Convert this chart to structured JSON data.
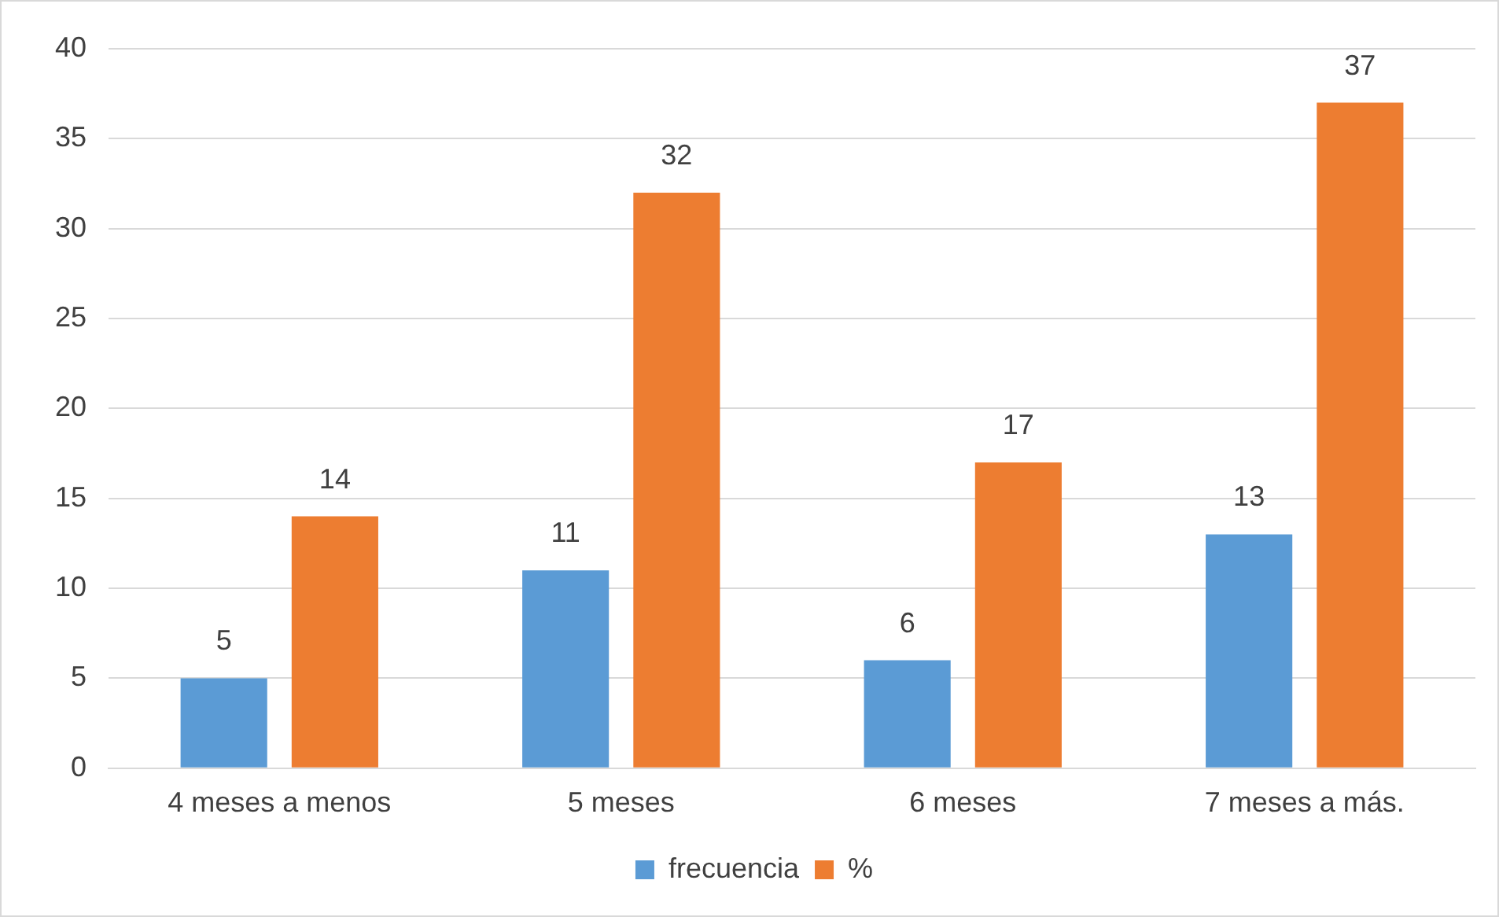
{
  "chart_data": {
    "type": "bar",
    "categories": [
      "4 meses a menos",
      "5 meses",
      "6 meses",
      "7 meses a más."
    ],
    "series": [
      {
        "name": "frecuencia",
        "color": "#5b9bd5",
        "values": [
          5,
          11,
          6,
          13
        ]
      },
      {
        "name": "%",
        "color": "#ed7d31",
        "values": [
          14,
          32,
          17,
          37
        ]
      }
    ],
    "ylim": [
      0,
      40
    ],
    "yticks": [
      0,
      5,
      10,
      15,
      20,
      25,
      30,
      35,
      40
    ],
    "grid": "y",
    "legend": "bottom",
    "data_labels": true
  }
}
